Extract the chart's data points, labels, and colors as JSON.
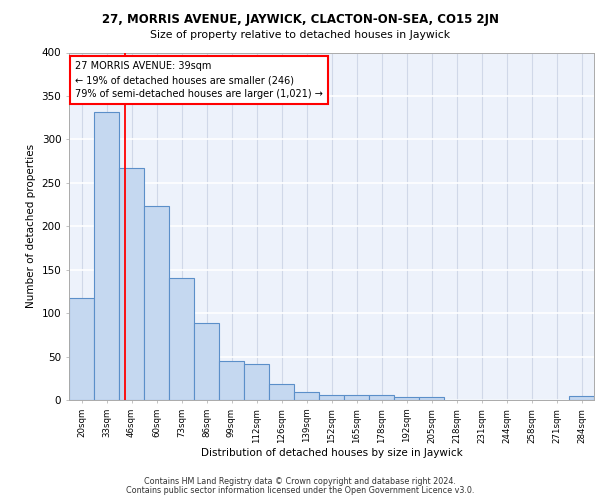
{
  "title1": "27, MORRIS AVENUE, JAYWICK, CLACTON-ON-SEA, CO15 2JN",
  "title2": "Size of property relative to detached houses in Jaywick",
  "xlabel": "Distribution of detached houses by size in Jaywick",
  "ylabel": "Number of detached properties",
  "categories": [
    "20sqm",
    "33sqm",
    "46sqm",
    "60sqm",
    "73sqm",
    "86sqm",
    "99sqm",
    "112sqm",
    "126sqm",
    "139sqm",
    "152sqm",
    "165sqm",
    "178sqm",
    "192sqm",
    "205sqm",
    "218sqm",
    "231sqm",
    "244sqm",
    "258sqm",
    "271sqm",
    "284sqm"
  ],
  "values": [
    117,
    331,
    267,
    223,
    141,
    89,
    45,
    41,
    18,
    9,
    6,
    6,
    6,
    3,
    4,
    0,
    0,
    0,
    0,
    0,
    5
  ],
  "bar_color": "#c5d8f0",
  "bar_edge_color": "#5b8fc9",
  "annotation_text": "27 MORRIS AVENUE: 39sqm\n← 19% of detached houses are smaller (246)\n79% of semi-detached houses are larger (1,021) →",
  "box_color": "red",
  "background_color": "#edf2fb",
  "grid_color": "#d0d8e8",
  "footer1": "Contains HM Land Registry data © Crown copyright and database right 2024.",
  "footer2": "Contains public sector information licensed under the Open Government Licence v3.0.",
  "ylim": [
    0,
    400
  ],
  "yticks": [
    0,
    50,
    100,
    150,
    200,
    250,
    300,
    350,
    400
  ],
  "red_line_x": 1.75
}
